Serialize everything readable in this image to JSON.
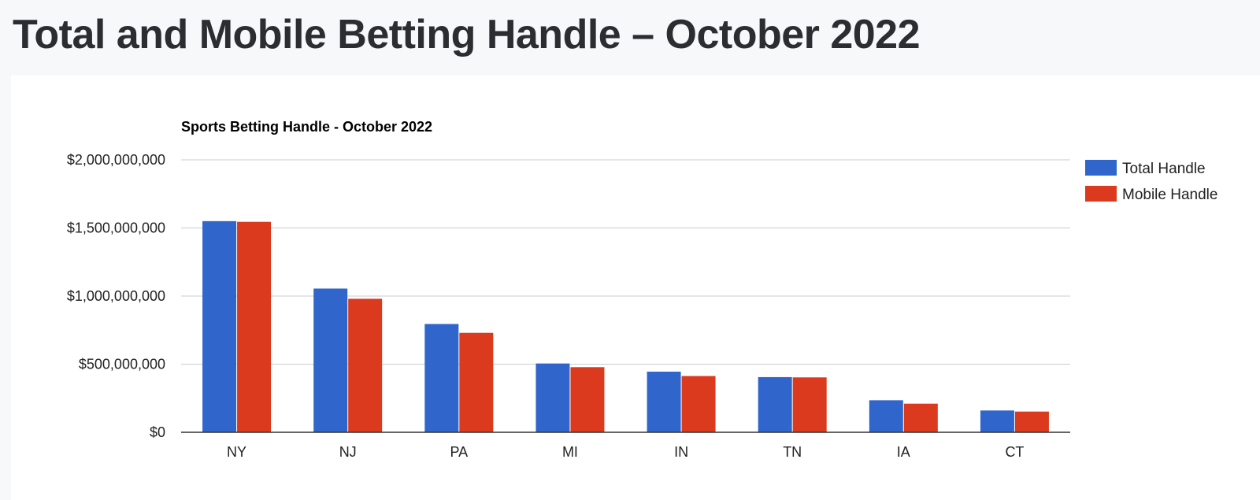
{
  "page": {
    "title": "Total and Mobile Betting Handle – October 2022"
  },
  "colors": {
    "total": "#3066cc",
    "mobile": "#dc3a1e",
    "grid": "#cccccc",
    "axis": "#333333"
  },
  "chart_data": {
    "type": "bar",
    "title": "Sports Betting Handle - October 2022",
    "xlabel": "",
    "ylabel": "",
    "categories": [
      "NY",
      "NJ",
      "PA",
      "MI",
      "IN",
      "TN",
      "IA",
      "CT"
    ],
    "series": [
      {
        "name": "Total Handle",
        "values": [
          1550000000,
          1055000000,
          795000000,
          505000000,
          445000000,
          405000000,
          235000000,
          160000000
        ]
      },
      {
        "name": "Mobile Handle",
        "values": [
          1545000000,
          980000000,
          730000000,
          478000000,
          413000000,
          403000000,
          210000000,
          152000000
        ]
      }
    ],
    "ylim": [
      0,
      2000000000
    ],
    "yticks": [
      0,
      500000000,
      1000000000,
      1500000000,
      2000000000
    ],
    "ytick_labels": [
      "$0",
      "$500,000,000",
      "$1,000,000,000",
      "$1,500,000,000",
      "$2,000,000,000"
    ],
    "grid": true,
    "legend_position": "right"
  }
}
